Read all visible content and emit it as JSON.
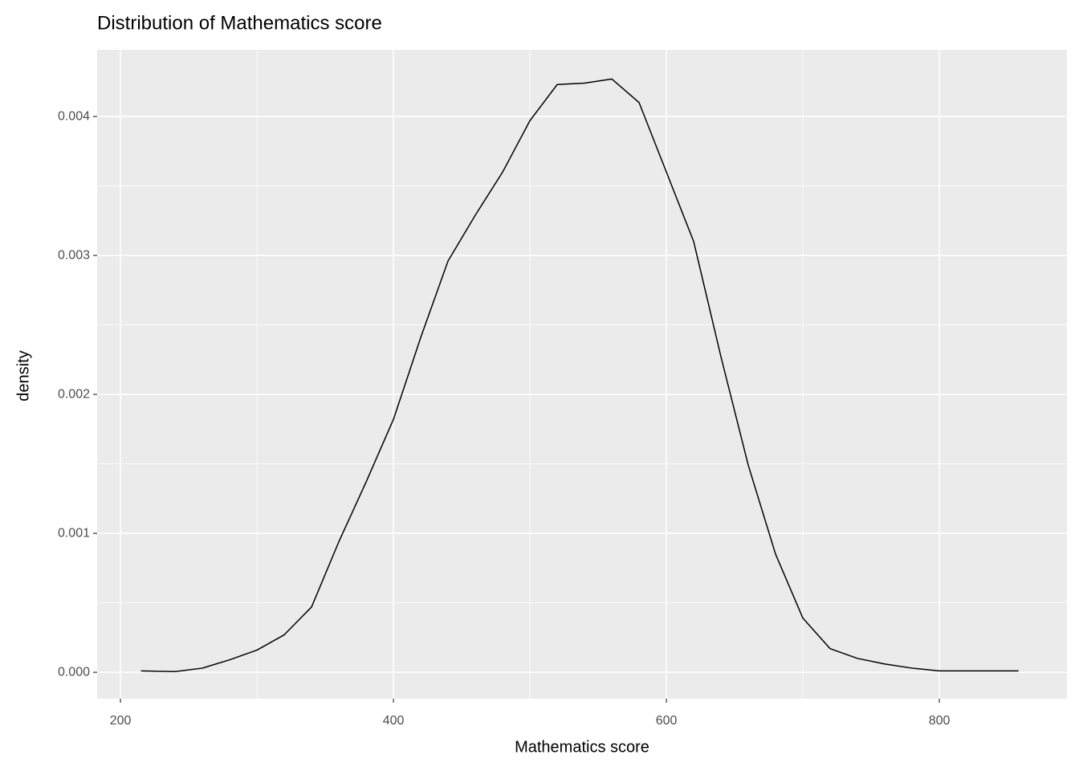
{
  "chart_data": {
    "type": "line",
    "title": "Distribution of Mathematics score",
    "x_label": "Mathematics score",
    "y_label": "density",
    "x": [
      215,
      240,
      260,
      280,
      300,
      320,
      340,
      360,
      380,
      400,
      420,
      440,
      460,
      480,
      500,
      520,
      540,
      560,
      580,
      600,
      620,
      640,
      660,
      680,
      700,
      720,
      740,
      760,
      780,
      800,
      820,
      840,
      858
    ],
    "series": [
      {
        "name": "density",
        "color": "#000000",
        "values": [
          1e-05,
          5e-06,
          3e-05,
          9e-05,
          0.00016,
          0.00027,
          0.00047,
          0.00094,
          0.00137,
          0.00182,
          0.00241,
          0.00296,
          0.00329,
          0.0036,
          0.00397,
          0.00423,
          0.00424,
          0.00427,
          0.0041,
          0.0036,
          0.0031,
          0.00227,
          0.00149,
          0.00085,
          0.00039,
          0.00017,
          0.0001,
          6e-05,
          3e-05,
          1e-05,
          1e-05,
          1e-05,
          1e-05
        ]
      }
    ],
    "xlim": [
      182.9,
      893.5
    ],
    "ylim": [
      -0.00019,
      0.00448
    ],
    "xticks": [
      200,
      400,
      600,
      800
    ],
    "yticks": [
      {
        "value": 0,
        "label": "0.000"
      },
      {
        "value": 0.001,
        "label": "0.001"
      },
      {
        "value": 0.002,
        "label": "0.002"
      },
      {
        "value": 0.003,
        "label": "0.003"
      },
      {
        "value": 0.004,
        "label": "0.004"
      }
    ],
    "x_minor_ticks": [
      300,
      500,
      700
    ],
    "y_minor_ticks": [
      0.0005,
      0.0015,
      0.0025,
      0.0035
    ],
    "grid": true,
    "panel_color": "#ebebeb",
    "grid_color": "#ffffff"
  }
}
